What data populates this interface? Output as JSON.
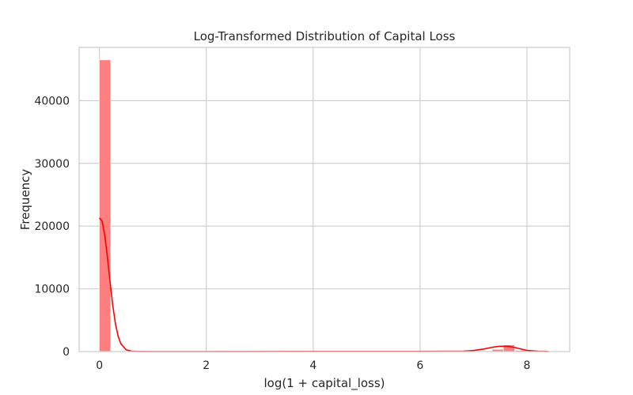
{
  "chart_data": {
    "type": "bar",
    "title": "Log-Transformed Distribution of Capital Loss",
    "xlabel": "log(1 + capital_loss)",
    "ylabel": "Frequency",
    "xlim": [
      -0.38,
      8.8
    ],
    "ylim": [
      0,
      48500
    ],
    "xticks": [
      0,
      2,
      4,
      6,
      8
    ],
    "yticks": [
      0,
      10000,
      20000,
      30000,
      40000
    ],
    "grid": true,
    "bar_color": "#ff7f7f",
    "kde_color": "#ff0000",
    "bin_width": 0.21,
    "bins_start": 0,
    "bin_counts": [
      46500,
      0,
      0,
      0,
      0,
      0,
      0,
      0,
      0,
      0,
      0,
      0,
      0,
      0,
      0,
      0,
      2,
      3,
      5,
      5,
      6,
      5,
      4,
      3,
      2,
      2,
      2,
      2,
      3,
      4,
      5,
      8,
      12,
      20,
      40,
      350,
      1050,
      180,
      60,
      20
    ],
    "kde": {
      "x": [
        0,
        0.05,
        0.1,
        0.15,
        0.2,
        0.25,
        0.3,
        0.35,
        0.4,
        0.5,
        0.6,
        0.7,
        0.8,
        1.0,
        2.0,
        4.0,
        6.0,
        6.8,
        7.0,
        7.2,
        7.35,
        7.5,
        7.65,
        7.8,
        7.9,
        8.0,
        8.2,
        8.4
      ],
      "y": [
        21300,
        20800,
        18500,
        15000,
        11000,
        7300,
        4400,
        2450,
        1250,
        280,
        60,
        20,
        5,
        0,
        0,
        20,
        20,
        60,
        170,
        420,
        680,
        850,
        840,
        600,
        380,
        180,
        50,
        10
      ]
    }
  }
}
